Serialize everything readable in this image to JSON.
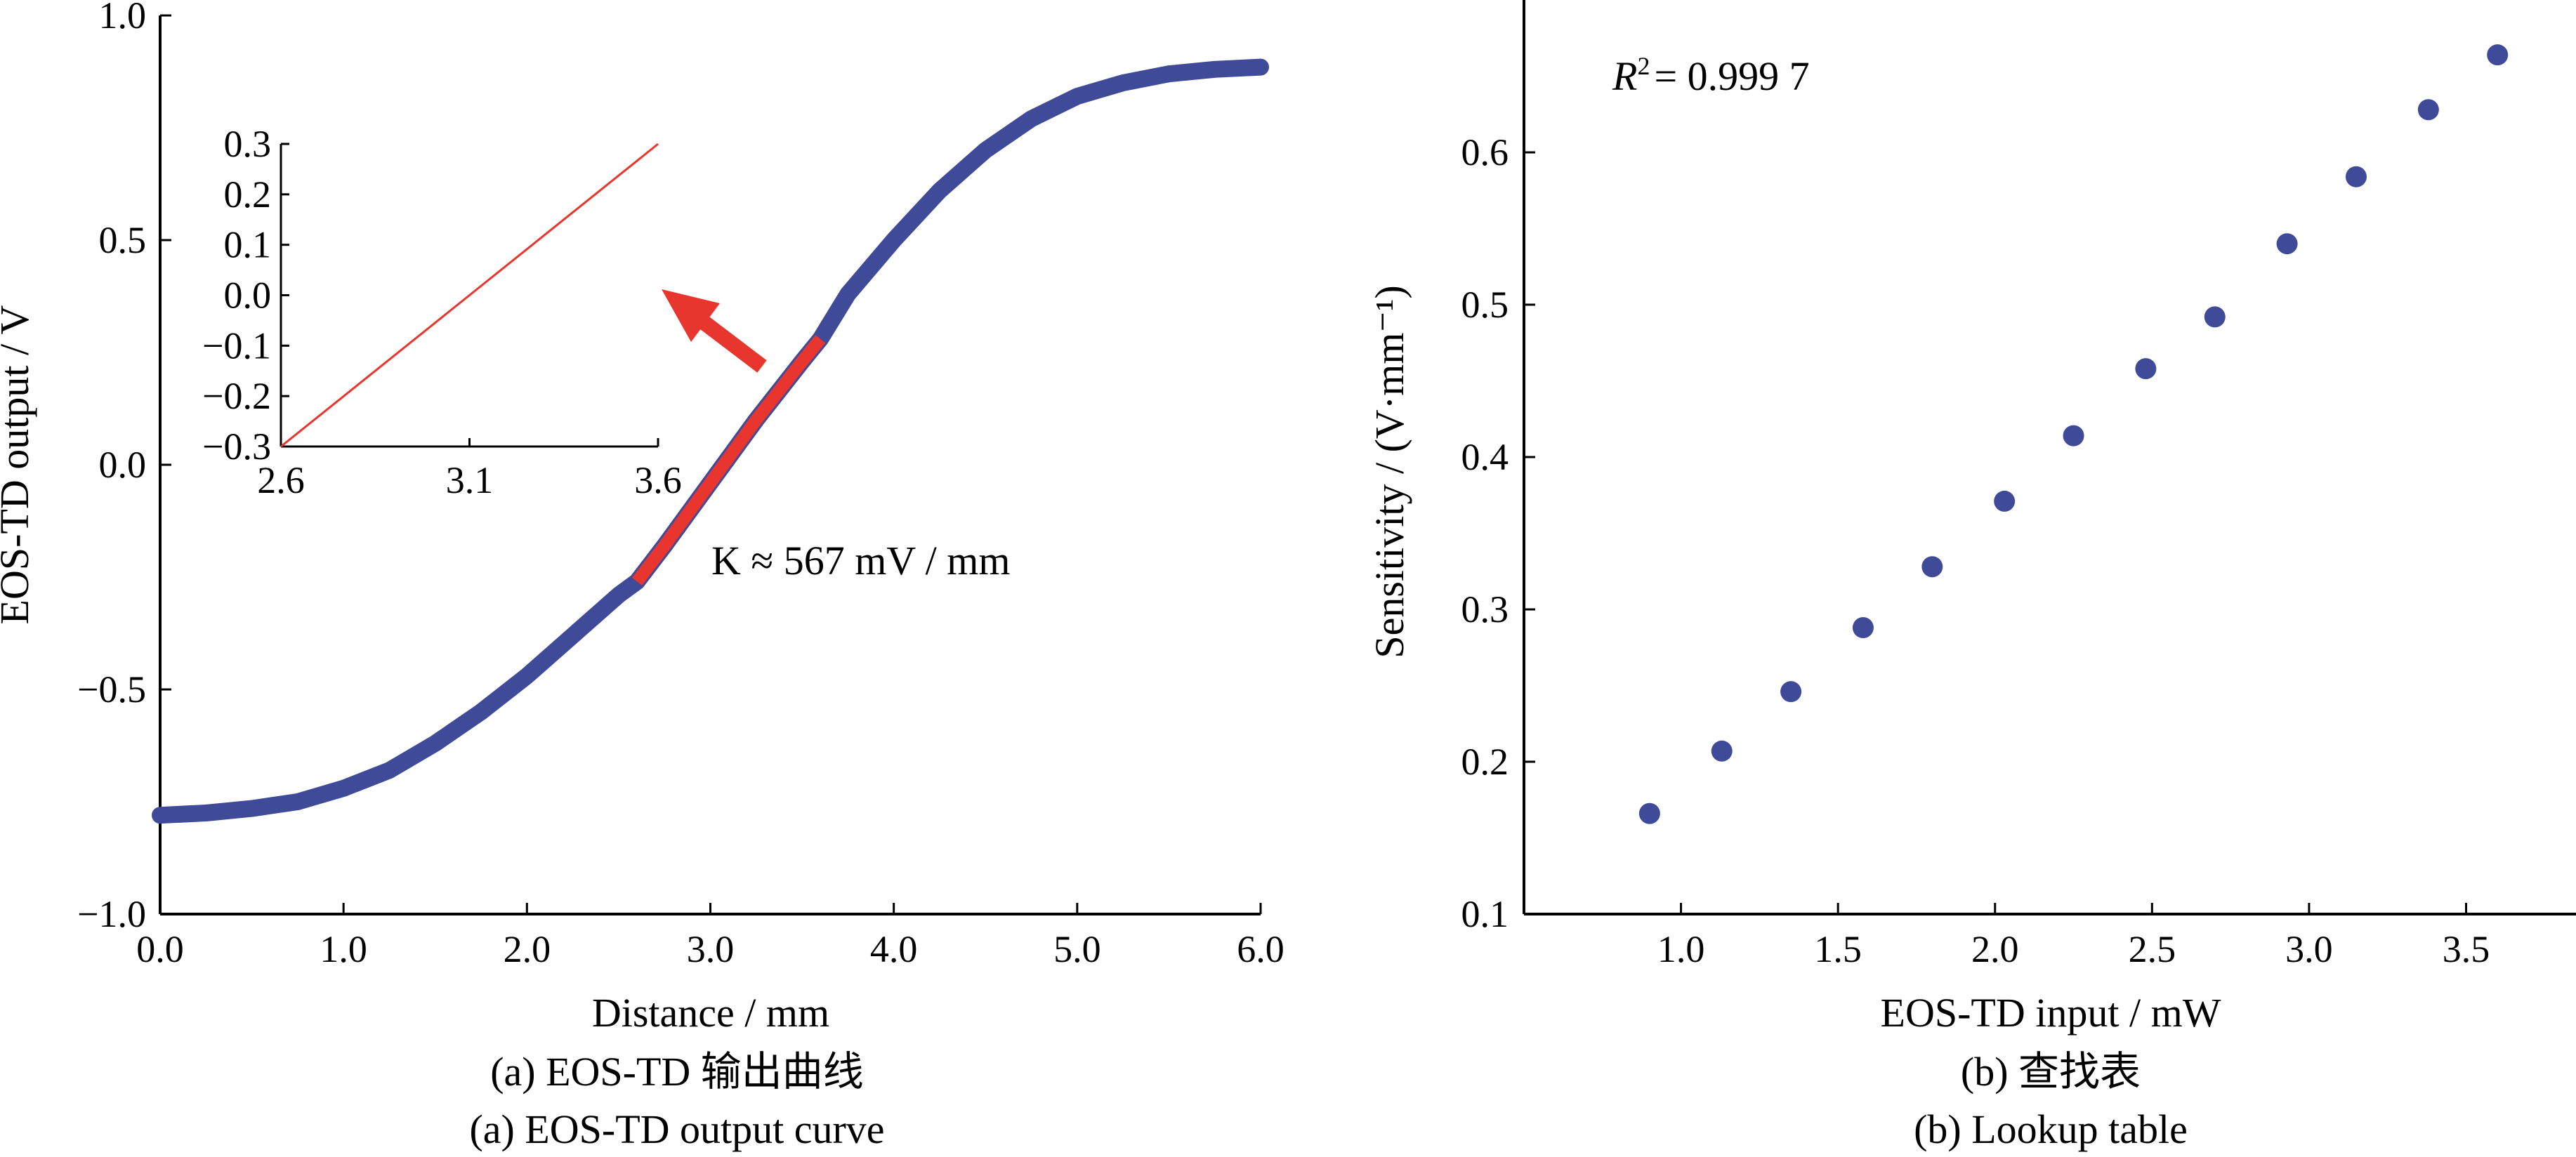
{
  "chart_data": [
    {
      "id": "a",
      "type": "line",
      "xlabel": "Distance / mm",
      "ylabel": "EOS-TD output / V",
      "xlim": [
        0,
        6
      ],
      "ylim": [
        -1,
        1
      ],
      "xticks": [
        "0.0",
        "1.0",
        "2.0",
        "3.0",
        "4.0",
        "5.0",
        "6.0"
      ],
      "yticks": [
        "−1.0",
        "−0.5",
        "0.0",
        "0.5",
        "1.0"
      ],
      "series": [
        {
          "color": "#3f4a99",
          "x": [
            0,
            0.25,
            0.5,
            0.75,
            1.0,
            1.25,
            1.5,
            1.75,
            2.0,
            2.25,
            2.5,
            2.6,
            2.75,
            3.0,
            3.25,
            3.5,
            3.6,
            3.75,
            4.0,
            4.25,
            4.5,
            4.75,
            5.0,
            5.25,
            5.5,
            5.75,
            6.0
          ],
          "y": [
            -0.78,
            -0.775,
            -0.765,
            -0.75,
            -0.72,
            -0.68,
            -0.62,
            -0.55,
            -0.47,
            -0.38,
            -0.29,
            -0.26,
            -0.18,
            -0.04,
            0.1,
            0.23,
            0.28,
            0.38,
            0.5,
            0.61,
            0.7,
            0.77,
            0.82,
            0.85,
            0.87,
            0.88,
            0.885
          ]
        }
      ],
      "highlight": {
        "color": "#e8352e",
        "x_range": [
          2.6,
          3.6
        ]
      },
      "annotation": "K ≈ 567 mV / mm",
      "inset": {
        "xlim": [
          2.6,
          3.6
        ],
        "ylim": [
          -0.3,
          0.3
        ],
        "xticks": [
          "2.6",
          "3.1",
          "3.6"
        ],
        "yticks": [
          "0.3",
          "0.2",
          "0.1",
          "0.0",
          "−0.1",
          "−0.2",
          "−0.3"
        ],
        "line": {
          "x": [
            2.6,
            3.6
          ],
          "y": [
            -0.3,
            0.3
          ],
          "color": "#e8352e"
        }
      },
      "caption_cn": "(a) EOS-TD 输出曲线",
      "caption_en": "(a) EOS-TD output curve"
    },
    {
      "id": "b",
      "type": "scatter",
      "xlabel": "EOS-TD input / mW",
      "ylabel": "Sensitivity / (V·mm⁻¹)",
      "xlim": [
        0.5,
        3.85
      ],
      "ylim": [
        0.1,
        0.7
      ],
      "xticks": [
        "1.0",
        "1.5",
        "2.0",
        "2.5",
        "3.0",
        "3.5"
      ],
      "yticks": [
        "0.1",
        "0.2",
        "0.3",
        "0.4",
        "0.5",
        "0.6"
      ],
      "series": [
        {
          "color": "#3f4a99",
          "x": [
            0.9,
            1.13,
            1.35,
            1.58,
            1.8,
            2.03,
            2.25,
            2.48,
            2.7,
            2.93,
            3.15,
            3.38,
            3.6
          ],
          "y": [
            0.166,
            0.207,
            0.246,
            0.288,
            0.328,
            0.371,
            0.414,
            0.458,
            0.492,
            0.54,
            0.584,
            0.628,
            0.664
          ]
        }
      ],
      "annotation_r": "R",
      "annotation_sup": "2",
      "annotation_value": "= 0.999 7",
      "caption_cn": "(b) 查找表",
      "caption_en": "(b) Lookup table"
    }
  ]
}
